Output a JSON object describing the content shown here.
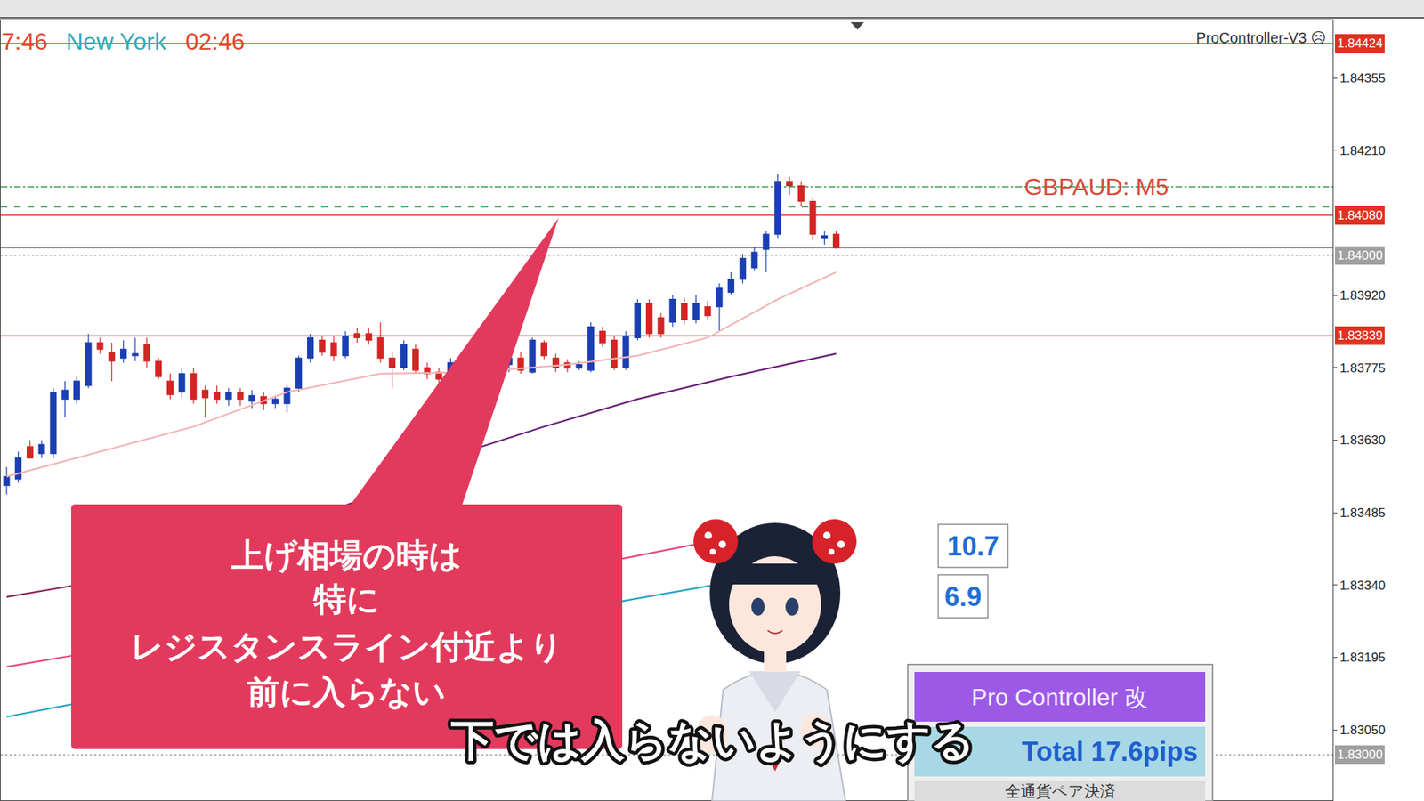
{
  "chart_data": {
    "type": "candlestick",
    "title": "GBPAUD: M5",
    "categories": [
      null,
      null,
      null,
      null,
      null,
      null,
      null,
      null,
      null,
      null,
      null,
      null,
      null,
      null,
      null,
      null,
      null,
      null,
      null,
      null,
      null,
      null,
      null,
      null,
      null,
      null,
      null,
      null,
      null,
      null,
      null,
      null,
      null,
      null,
      null,
      null,
      null,
      null,
      null,
      null,
      null,
      null,
      null,
      null,
      null,
      null,
      null,
      null,
      null,
      null,
      null,
      null,
      null,
      null,
      null,
      null,
      null,
      null,
      null,
      null,
      null,
      null,
      null,
      null,
      null,
      null,
      null,
      null,
      null,
      null,
      null,
      null
    ],
    "open": [
      1.83539,
      1.83552,
      1.83617,
      1.83603,
      1.83603,
      1.83712,
      1.83712,
      1.83739,
      1.83825,
      1.83806,
      1.83794,
      1.83799,
      1.83821,
      1.83788,
      1.83748,
      1.83726,
      1.83763,
      1.8373,
      1.83726,
      1.83712,
      1.83726,
      1.83708,
      1.83717,
      1.83703,
      1.83703,
      1.83734,
      1.83794,
      1.8383,
      1.83825,
      1.83799,
      1.83843,
      1.83843,
      1.83835,
      1.83794,
      1.83775,
      1.83812,
      1.83775,
      1.83766,
      1.83757,
      1.83781,
      1.83794,
      1.83781,
      1.83799,
      1.83781,
      1.83794,
      1.83766,
      1.83825,
      1.83794,
      1.83785,
      1.83774,
      1.8377,
      1.83848,
      1.8383,
      1.83775,
      1.83835,
      1.83903,
      1.83875,
      1.83866,
      1.83903,
      1.83872,
      1.83897,
      1.83897,
      1.83926,
      1.83952,
      1.83975,
      1.84012,
      1.84042,
      1.84148,
      1.84139,
      1.84108,
      1.84035,
      1.84042
    ],
    "high": [
      1.83576,
      1.83607,
      1.8363,
      1.8363,
      1.83734,
      1.83748,
      1.83757,
      1.83843,
      1.83835,
      1.83825,
      1.8383,
      1.83835,
      1.83835,
      1.83794,
      1.83763,
      1.83775,
      1.83775,
      1.83739,
      1.83739,
      1.83734,
      1.83734,
      1.8373,
      1.83726,
      1.83719,
      1.83739,
      1.83799,
      1.83843,
      1.83839,
      1.83839,
      1.83848,
      1.83854,
      1.83854,
      1.83866,
      1.83806,
      1.8383,
      1.83821,
      1.83785,
      1.83775,
      1.83794,
      1.83803,
      1.83803,
      1.83806,
      1.83806,
      1.83806,
      1.83806,
      1.83835,
      1.8383,
      1.83803,
      1.83792,
      1.83788,
      1.83866,
      1.83857,
      1.83839,
      1.83848,
      1.83912,
      1.83912,
      1.83884,
      1.83921,
      1.83915,
      1.83921,
      1.83908,
      1.83944,
      1.83966,
      1.84003,
      1.84017,
      1.84048,
      1.84162,
      1.84157,
      1.84148,
      1.84115,
      1.84048,
      1.84048
    ],
    "low": [
      1.83521,
      1.83545,
      1.83594,
      1.83594,
      1.83594,
      1.83676,
      1.83703,
      1.83734,
      1.83803,
      1.83748,
      1.83785,
      1.83788,
      1.83775,
      1.83752,
      1.83712,
      1.83715,
      1.83703,
      1.83676,
      1.83703,
      1.83699,
      1.83699,
      1.83694,
      1.8369,
      1.83694,
      1.83685,
      1.83726,
      1.83785,
      1.83799,
      1.83788,
      1.83794,
      1.83825,
      1.83821,
      1.83785,
      1.83734,
      1.8377,
      1.83763,
      1.83752,
      1.83734,
      1.83748,
      1.8377,
      1.83775,
      1.83774,
      1.83775,
      1.83766,
      1.83763,
      1.83763,
      1.83792,
      1.83766,
      1.83766,
      1.8377,
      1.83766,
      1.83817,
      1.8377,
      1.8377,
      1.8383,
      1.83835,
      1.83835,
      1.83857,
      1.83861,
      1.83864,
      1.83872,
      1.83848,
      1.83921,
      1.83944,
      1.8397,
      1.83966,
      1.84035,
      1.84121,
      1.84097,
      1.8403,
      1.84021,
      1.84013
    ],
    "close": [
      1.83557,
      1.83594,
      1.83594,
      1.83621,
      1.83726,
      1.8373,
      1.83748,
      1.83825,
      1.83812,
      1.83788,
      1.83812,
      1.83803,
      1.83788,
      1.83757,
      1.83721,
      1.83763,
      1.83712,
      1.83715,
      1.83712,
      1.83726,
      1.83712,
      1.83719,
      1.83703,
      1.83712,
      1.83734,
      1.83794,
      1.83835,
      1.83806,
      1.83799,
      1.83839,
      1.83835,
      1.8383,
      1.83794,
      1.83775,
      1.83821,
      1.8377,
      1.83763,
      1.83752,
      1.83785,
      1.83794,
      1.83781,
      1.83799,
      1.83785,
      1.83794,
      1.8377,
      1.8383,
      1.83799,
      1.83775,
      1.83774,
      1.83781,
      1.83857,
      1.83825,
      1.83775,
      1.83839,
      1.83903,
      1.83843,
      1.83843,
      1.83912,
      1.83872,
      1.83903,
      1.83879,
      1.83934,
      1.83952,
      1.83994,
      1.84006,
      1.84042,
      1.84148,
      1.84139,
      1.84108,
      1.84042,
      1.84039,
      1.84015
    ],
    "colors": [
      "#1b3fb3",
      "#d42424"
    ],
    "series": [
      {
        "type": "line",
        "color": "#f2b4b4",
        "x": [
          0,
          8,
          16,
          24,
          32,
          40,
          48,
          54,
          60,
          66,
          71
        ],
        "values": [
          1.83557,
          1.83607,
          1.83657,
          1.83726,
          1.83763,
          1.83766,
          1.83781,
          1.83799,
          1.83835,
          1.83912,
          1.83966
        ]
      },
      {
        "type": "line",
        "color": "#6a1f78",
        "x": [
          25,
          31,
          40,
          46,
          54,
          62,
          71
        ],
        "values": [
          1.83467,
          1.83516,
          1.83612,
          1.83657,
          1.83712,
          1.83757,
          1.83803
        ]
      },
      {
        "type": "line",
        "color": "#8a2458",
        "x": [
          0,
          6,
          30
        ],
        "values": [
          1.83316,
          1.8334,
          1.83421
        ]
      },
      {
        "type": "line",
        "color": "#e8487a",
        "x": [
          0,
          6,
          53,
          65
        ],
        "values": [
          1.83176,
          1.832,
          1.83394,
          1.83449
        ]
      },
      {
        "type": "line",
        "color": "#22a4c4",
        "x": [
          0,
          6,
          53,
          65
        ],
        "values": [
          1.83076,
          1.83103,
          1.83309,
          1.83358
        ]
      }
    ],
    "levels": [
      {
        "value": 1.84424,
        "label": "1.84424",
        "color": "#e03222",
        "line_style": "solid"
      },
      {
        "value": 1.84137,
        "color": "#2f9a4c",
        "line_style": "dashdot"
      },
      {
        "value": 1.84097,
        "color": "#2f9a4c",
        "line_style": "dashed"
      },
      {
        "value": 1.8408,
        "label": "1.84080",
        "color": "#e03222",
        "line_style": "solid"
      },
      {
        "value": 1.84015,
        "color": "#7a7a7a",
        "line_style": "solid"
      },
      {
        "value": 1.84,
        "label": "1.84000",
        "color": "#a0a0a0",
        "line_style": "dotted"
      },
      {
        "value": 1.83839,
        "label": "1.83839",
        "color": "#e03222",
        "line_style": "solid"
      },
      {
        "value": 1.83,
        "label": "1.83000",
        "color": "#a0a0a0",
        "line_style": "dotted"
      }
    ],
    "xlim": [
      -0.5,
      113.5
    ],
    "ylim": [
      1.82909,
      1.84471
    ],
    "yticks": [
      1.84355,
      {
        "value": 1.8421,
        "label": "1.84210"
      },
      {
        "value": 1.8392,
        "label": "1.83920"
      },
      1.83775,
      {
        "value": 1.8363,
        "label": "1.83630"
      },
      1.83485,
      {
        "value": 1.8334,
        "label": "1.83340"
      },
      1.83195,
      {
        "value": 1.8305,
        "label": "1.83050"
      }
    ],
    "tick_labels": "y",
    "grid": false
  },
  "clock": [
    {
      "text": "7:46",
      "color": "#e8452c"
    },
    {
      "text": "New York",
      "color": "#3aa8b8"
    },
    {
      "text": "02:46",
      "color": "#e8452c"
    }
  ],
  "brand": "ProController-V3 ☹",
  "callout": [
    "上げ相場の時は",
    "特に",
    "レジスタンスライン付近より",
    "前に入らない"
  ],
  "subtitle": "下では入らないようにする",
  "stat_boxes": [
    10.7,
    6.9
  ],
  "panel": {
    "title": "Pro Controller 改",
    "total": "Total 17.6pips",
    "button": "全通貨ペア決済"
  }
}
